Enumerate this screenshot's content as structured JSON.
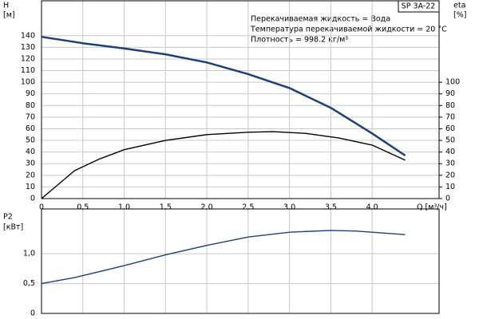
{
  "chart_data": [
    {
      "type": "line",
      "y_label": "H",
      "y_unit": "[м]",
      "y2_label": "eta",
      "y2_unit": "[%]",
      "x_label": "Q [м³/ч]",
      "model_label": "SP 3A-22",
      "annotations": [
        "Перекачиваемая жидкость = Вода",
        "Температура перекачиваемой жидкости = 20 °C",
        "Плотность = 998.2 кг/м³"
      ],
      "xlim": [
        0,
        4.81
      ],
      "xticks": [
        0,
        {
          "value": 0.5,
          "label": "0,5"
        },
        {
          "value": 1.0,
          "label": "1,0"
        },
        {
          "value": 1.5,
          "label": "1,5"
        },
        {
          "value": 2.0,
          "label": "2,0"
        },
        {
          "value": 2.5,
          "label": "2,5"
        },
        {
          "value": 3.0,
          "label": "3,0"
        },
        {
          "value": 3.5,
          "label": "3,5"
        },
        {
          "value": 4.0,
          "label": "4,0"
        }
      ],
      "ylim": [
        0,
        170
      ],
      "yticks": [
        0,
        10,
        20,
        30,
        40,
        50,
        60,
        70,
        80,
        90,
        100,
        110,
        120,
        130,
        140
      ],
      "y2lim": [
        0,
        170
      ],
      "y2ticks": [
        0,
        10,
        20,
        30,
        40,
        50,
        60,
        70,
        80,
        90,
        100
      ],
      "grid": true,
      "series": [
        {
          "name": "H",
          "color": "#1f3f7a",
          "x": [
            0,
            0.5,
            1,
            1.5,
            2,
            2.5,
            3,
            3.5,
            4,
            4.4
          ],
          "values": [
            139,
            133.5,
            129,
            124,
            117,
            107,
            95,
            78,
            56,
            37
          ]
        },
        {
          "name": "eta",
          "color": "#000000",
          "axis": "y2",
          "x": [
            0,
            0.2,
            0.4,
            0.7,
            1,
            1.5,
            2,
            2.5,
            2.8,
            3.2,
            3.6,
            4,
            4.4
          ],
          "values": [
            0,
            12,
            24,
            34,
            42,
            50,
            55,
            57,
            57.5,
            56,
            52,
            46,
            33
          ]
        }
      ]
    },
    {
      "type": "line",
      "y_label": "P2",
      "y_unit": "[кВт]",
      "xlim": [
        0,
        4.81
      ],
      "ylim": [
        0,
        1.75
      ],
      "yticks": [
        0,
        {
          "value": 0.5,
          "label": "0,5"
        },
        {
          "value": 1.0,
          "label": "1,0"
        }
      ],
      "grid": true,
      "series": [
        {
          "name": "P2",
          "color": "#1f3f7a",
          "x": [
            0,
            0.4,
            1,
            1.5,
            2,
            2.5,
            3,
            3.5,
            3.8,
            4.4
          ],
          "values": [
            0.5,
            0.6,
            0.8,
            0.98,
            1.14,
            1.28,
            1.36,
            1.39,
            1.38,
            1.32
          ]
        }
      ]
    }
  ]
}
